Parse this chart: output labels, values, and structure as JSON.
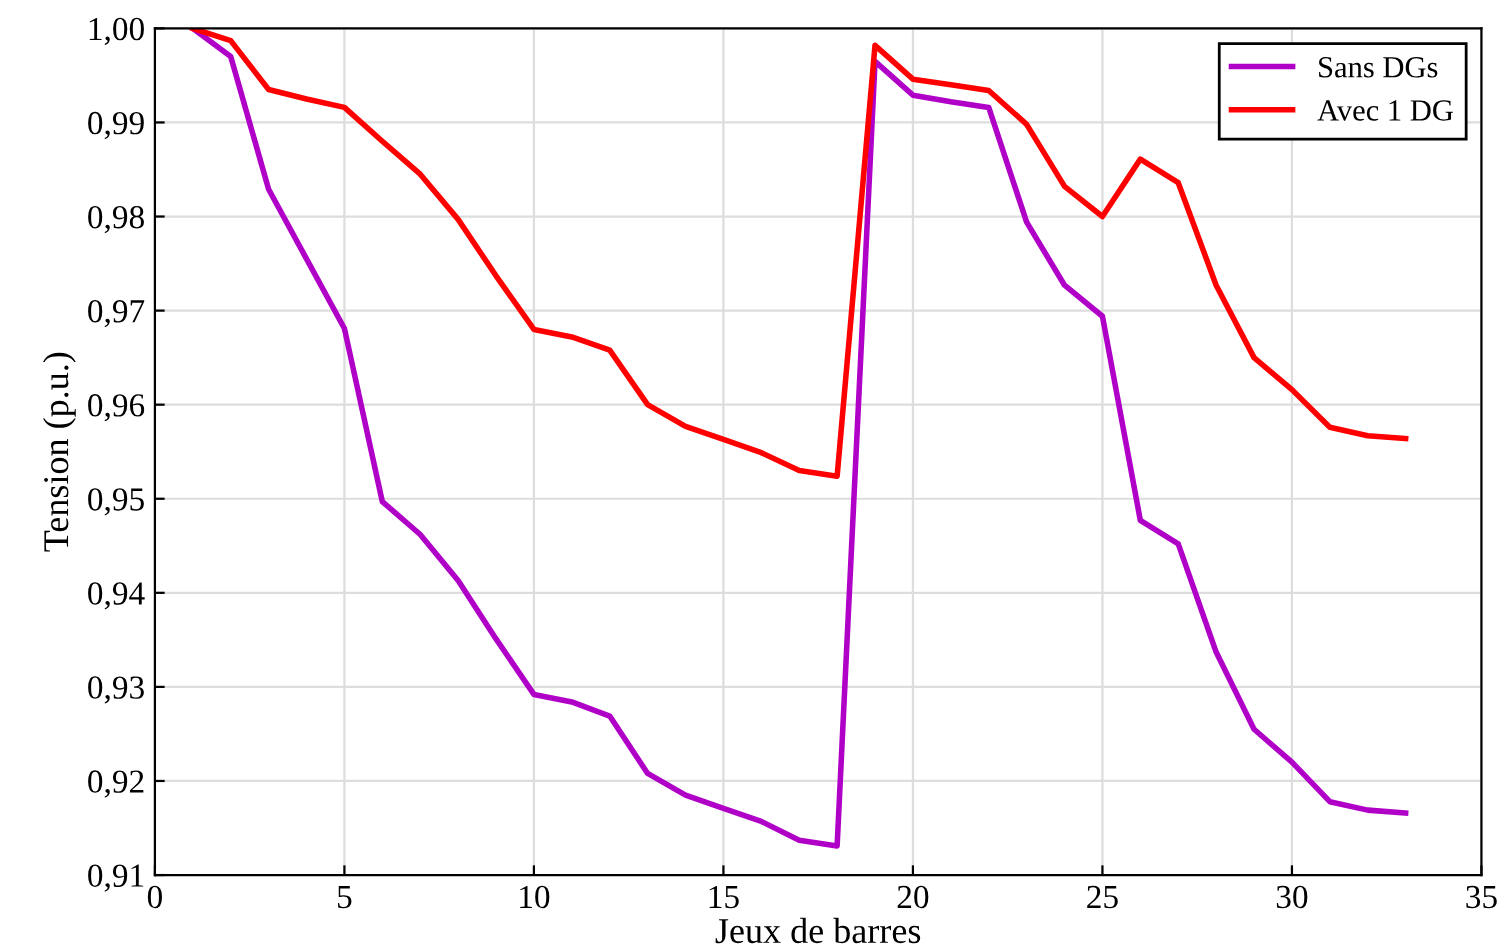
{
  "chart_data": {
    "type": "line",
    "xlabel": "Jeux de barres",
    "ylabel": "Tension (p.u.)",
    "x": [
      1,
      2,
      3,
      4,
      5,
      6,
      7,
      8,
      9,
      10,
      11,
      12,
      13,
      14,
      15,
      16,
      17,
      18,
      19,
      20,
      21,
      22,
      23,
      24,
      25,
      26,
      27,
      28,
      29,
      30,
      31,
      32,
      33
    ],
    "series": [
      {
        "name": "Sans DGs",
        "color": "#b000c8",
        "values": [
          1.0,
          0.997,
          0.9829,
          0.9755,
          0.9681,
          0.9497,
          0.9462,
          0.9413,
          0.9351,
          0.9292,
          0.9284,
          0.9269,
          0.9208,
          0.9185,
          0.9171,
          0.9157,
          0.9137,
          0.9131,
          0.9965,
          0.9929,
          0.9922,
          0.9916,
          0.9794,
          0.9727,
          0.9694,
          0.9477,
          0.9452,
          0.9337,
          0.9255,
          0.922,
          0.9178,
          0.9169,
          0.9166
        ]
      },
      {
        "name": "Avec 1 DG",
        "color": "#ff0000",
        "values": [
          1.0,
          0.9987,
          0.9935,
          0.9925,
          0.9916,
          0.988,
          0.9845,
          0.9797,
          0.9737,
          0.968,
          0.9672,
          0.9658,
          0.96,
          0.9577,
          0.9563,
          0.9549,
          0.953,
          0.9524,
          0.9982,
          0.9946,
          0.994,
          0.9934,
          0.9898,
          0.9832,
          0.98,
          0.9861,
          0.9836,
          0.9727,
          0.965,
          0.9616,
          0.9576,
          0.9567,
          0.9564
        ]
      }
    ],
    "xlim": [
      0,
      35
    ],
    "xticks": [
      0,
      5,
      10,
      15,
      20,
      25,
      30,
      35
    ],
    "ylim": [
      0.91,
      1.0
    ],
    "yticks": [
      {
        "value": 0.91,
        "label": "0,91"
      },
      {
        "value": 0.92,
        "label": "0,92"
      },
      {
        "value": 0.93,
        "label": "0,93"
      },
      {
        "value": 0.94,
        "label": "0,94"
      },
      {
        "value": 0.95,
        "label": "0,95"
      },
      {
        "value": 0.96,
        "label": "0,96"
      },
      {
        "value": 0.97,
        "label": "0,97"
      },
      {
        "value": 0.98,
        "label": "0,98"
      },
      {
        "value": 0.99,
        "label": "0,99"
      },
      {
        "value": 1.0,
        "label": "1,00"
      }
    ],
    "grid": true,
    "legend": "top right",
    "marker": "none",
    "line_style": "solid"
  }
}
